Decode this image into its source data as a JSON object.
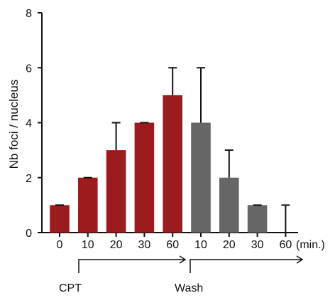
{
  "chart_data": {
    "type": "bar",
    "ylabel": "Nb foci / nucleus",
    "x_unit_label": "(min.)",
    "ylim": [
      0,
      8
    ],
    "y_ticks": [
      0,
      2,
      4,
      6,
      8
    ],
    "grid": false,
    "legend": "none",
    "colors": {
      "CPT": "#9b1b1f",
      "Wash": "#666666",
      "axis": "#111111",
      "text": "#111111"
    },
    "phases": [
      {
        "label": "CPT",
        "categories": [
          "0",
          "10",
          "20",
          "30",
          "60"
        ],
        "values": [
          1,
          2,
          3,
          4,
          5
        ],
        "error_upper": [
          1,
          2,
          4,
          4,
          6
        ]
      },
      {
        "label": "Wash",
        "categories": [
          "10",
          "20",
          "30",
          "60"
        ],
        "values": [
          4,
          2,
          1,
          0
        ],
        "error_upper": [
          6,
          3,
          1,
          1
        ]
      }
    ]
  }
}
